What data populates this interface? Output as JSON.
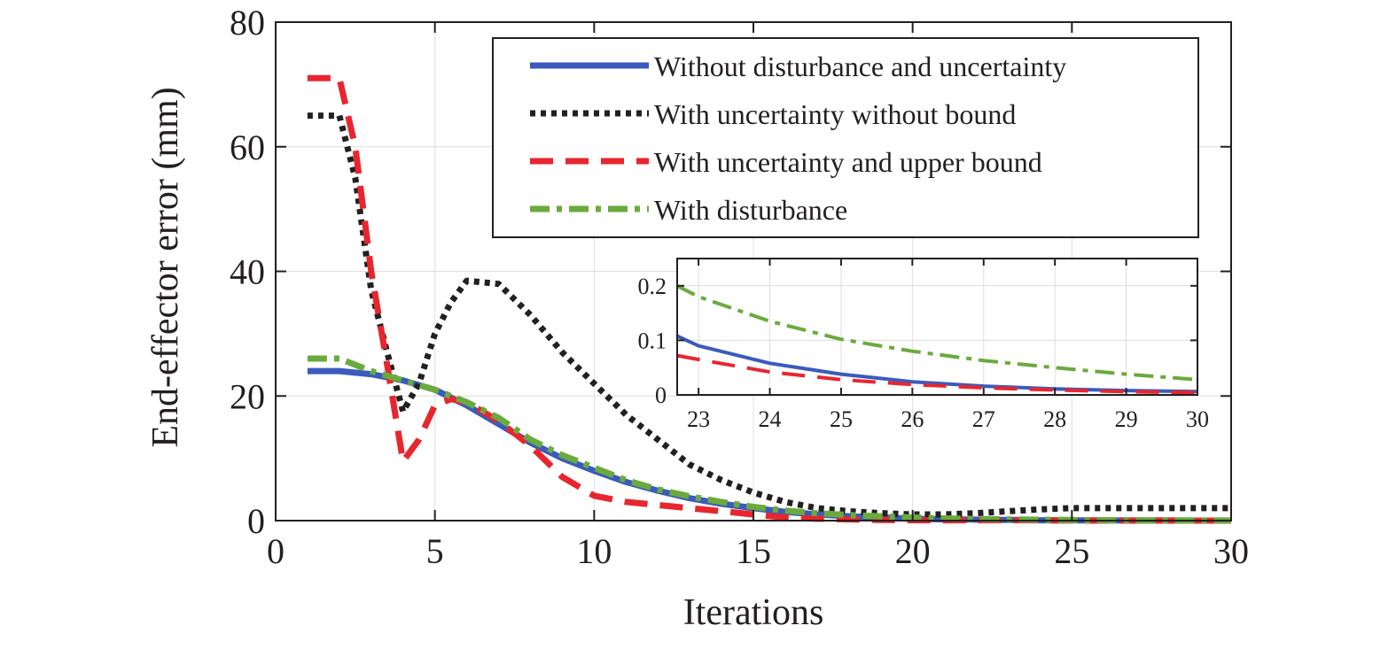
{
  "chart_data": [
    {
      "type": "line",
      "title": "",
      "xlabel": "Iterations",
      "ylabel": "End-effector error (mm)",
      "xlim": [
        0,
        30
      ],
      "ylim": [
        0,
        80
      ],
      "xticks": [
        "0",
        "5",
        "10",
        "15",
        "20",
        "25",
        "30"
      ],
      "yticks": [
        "0",
        "20",
        "40",
        "60",
        "80"
      ],
      "grid": true,
      "legend_position": "top-right",
      "series": [
        {
          "name": "Without disturbance and uncertainty",
          "color": "#3a5bbd",
          "style": "solid",
          "x": [
            1,
            2,
            3,
            4,
            5,
            6,
            7,
            8,
            9,
            10,
            11,
            12,
            13,
            14,
            15,
            16,
            17,
            18,
            19,
            20,
            21,
            22,
            23,
            24,
            25,
            26,
            27,
            28,
            29,
            30
          ],
          "y": [
            24,
            24,
            23.5,
            22.5,
            21,
            18.5,
            15.5,
            12.5,
            10,
            8,
            6.2,
            4.8,
            3.6,
            2.7,
            2,
            1.4,
            1,
            0.7,
            0.5,
            0.3,
            0.2,
            0.15,
            0.11,
            0.06,
            0.04,
            0.025,
            0.015,
            0.01,
            0.007,
            0.005
          ]
        },
        {
          "name": "With uncertainty without bound",
          "color": "#231f20",
          "style": "dotted",
          "x": [
            1,
            2,
            2.5,
            3,
            3.5,
            4,
            4.5,
            5,
            5.5,
            6,
            7,
            8,
            9,
            10,
            11,
            12,
            13,
            14,
            15,
            16,
            17,
            18,
            19,
            20,
            21,
            22,
            23,
            24,
            25,
            26,
            27,
            28,
            29,
            30
          ],
          "y": [
            65,
            65,
            55,
            37,
            27,
            17.5,
            22,
            30,
            35,
            38.5,
            38,
            33,
            27,
            22,
            17,
            13,
            9,
            6.5,
            4.5,
            3,
            2,
            1.5,
            1.2,
            1,
            1,
            1.2,
            1.5,
            1.8,
            2,
            2,
            2,
            2,
            2,
            2
          ]
        },
        {
          "name": "With uncertainty and upper bound",
          "color": "#e8262e",
          "style": "dashed",
          "x": [
            1,
            2,
            2.5,
            3,
            3.5,
            4,
            4.5,
            5,
            5.5,
            6,
            7,
            8,
            9,
            10,
            11,
            12,
            13,
            14,
            15,
            16,
            17,
            18,
            19,
            20,
            21,
            22,
            23,
            24,
            25,
            26,
            27,
            28,
            29,
            30
          ],
          "y": [
            71,
            71,
            60,
            40,
            25,
            9.5,
            13,
            18.5,
            19.5,
            19,
            16,
            12,
            7,
            4,
            3,
            2.5,
            2,
            1.5,
            1,
            0.5,
            0.3,
            0.2,
            0.1,
            0.05,
            0.05,
            0.05,
            0.07,
            0.04,
            0.025,
            0.015,
            0.01,
            0.008,
            0.005,
            0.004
          ]
        },
        {
          "name": "With disturbance",
          "color": "#6aab3d",
          "style": "dashdot",
          "x": [
            1,
            2,
            3,
            4,
            5,
            6,
            7,
            8,
            9,
            10,
            11,
            12,
            13,
            14,
            15,
            16,
            17,
            18,
            19,
            20,
            21,
            22,
            23,
            24,
            25,
            26,
            27,
            28,
            29,
            30
          ],
          "y": [
            26,
            26,
            24,
            22.5,
            21,
            19,
            16.5,
            13,
            10.5,
            8.5,
            6.5,
            5,
            3.9,
            3,
            2.2,
            1.6,
            1.2,
            0.9,
            0.7,
            0.5,
            0.35,
            0.25,
            0.2,
            0.14,
            0.1,
            0.08,
            0.06,
            0.045,
            0.035,
            0.025
          ]
        }
      ]
    },
    {
      "type": "line",
      "title": "",
      "xlabel": "",
      "ylabel": "",
      "xlim": [
        22.7,
        30
      ],
      "ylim": [
        0,
        0.25
      ],
      "xticks": [
        "23",
        "24",
        "25",
        "26",
        "27",
        "28",
        "29",
        "30"
      ],
      "yticks": [
        "0",
        "0.1",
        "0.2"
      ],
      "grid": true,
      "inset_of": 0,
      "series": [
        {
          "name": "Without disturbance and uncertainty",
          "color": "#3a5bbd",
          "style": "solid",
          "x": [
            22.7,
            23,
            24,
            25,
            26,
            27,
            28,
            29,
            30
          ],
          "y": [
            0.108,
            0.09,
            0.058,
            0.038,
            0.024,
            0.016,
            0.011,
            0.008,
            0.006
          ]
        },
        {
          "name": "With uncertainty and upper bound",
          "color": "#e8262e",
          "style": "dashed",
          "x": [
            22.7,
            23,
            24,
            25,
            26,
            27,
            28,
            29,
            30
          ],
          "y": [
            0.072,
            0.065,
            0.042,
            0.028,
            0.019,
            0.013,
            0.009,
            0.006,
            0.004
          ]
        },
        {
          "name": "With disturbance",
          "color": "#6aab3d",
          "style": "dashdot",
          "x": [
            22.7,
            23,
            24,
            25,
            26,
            27,
            28,
            29,
            30
          ],
          "y": [
            0.2,
            0.18,
            0.135,
            0.102,
            0.08,
            0.063,
            0.05,
            0.038,
            0.028
          ]
        }
      ]
    }
  ]
}
